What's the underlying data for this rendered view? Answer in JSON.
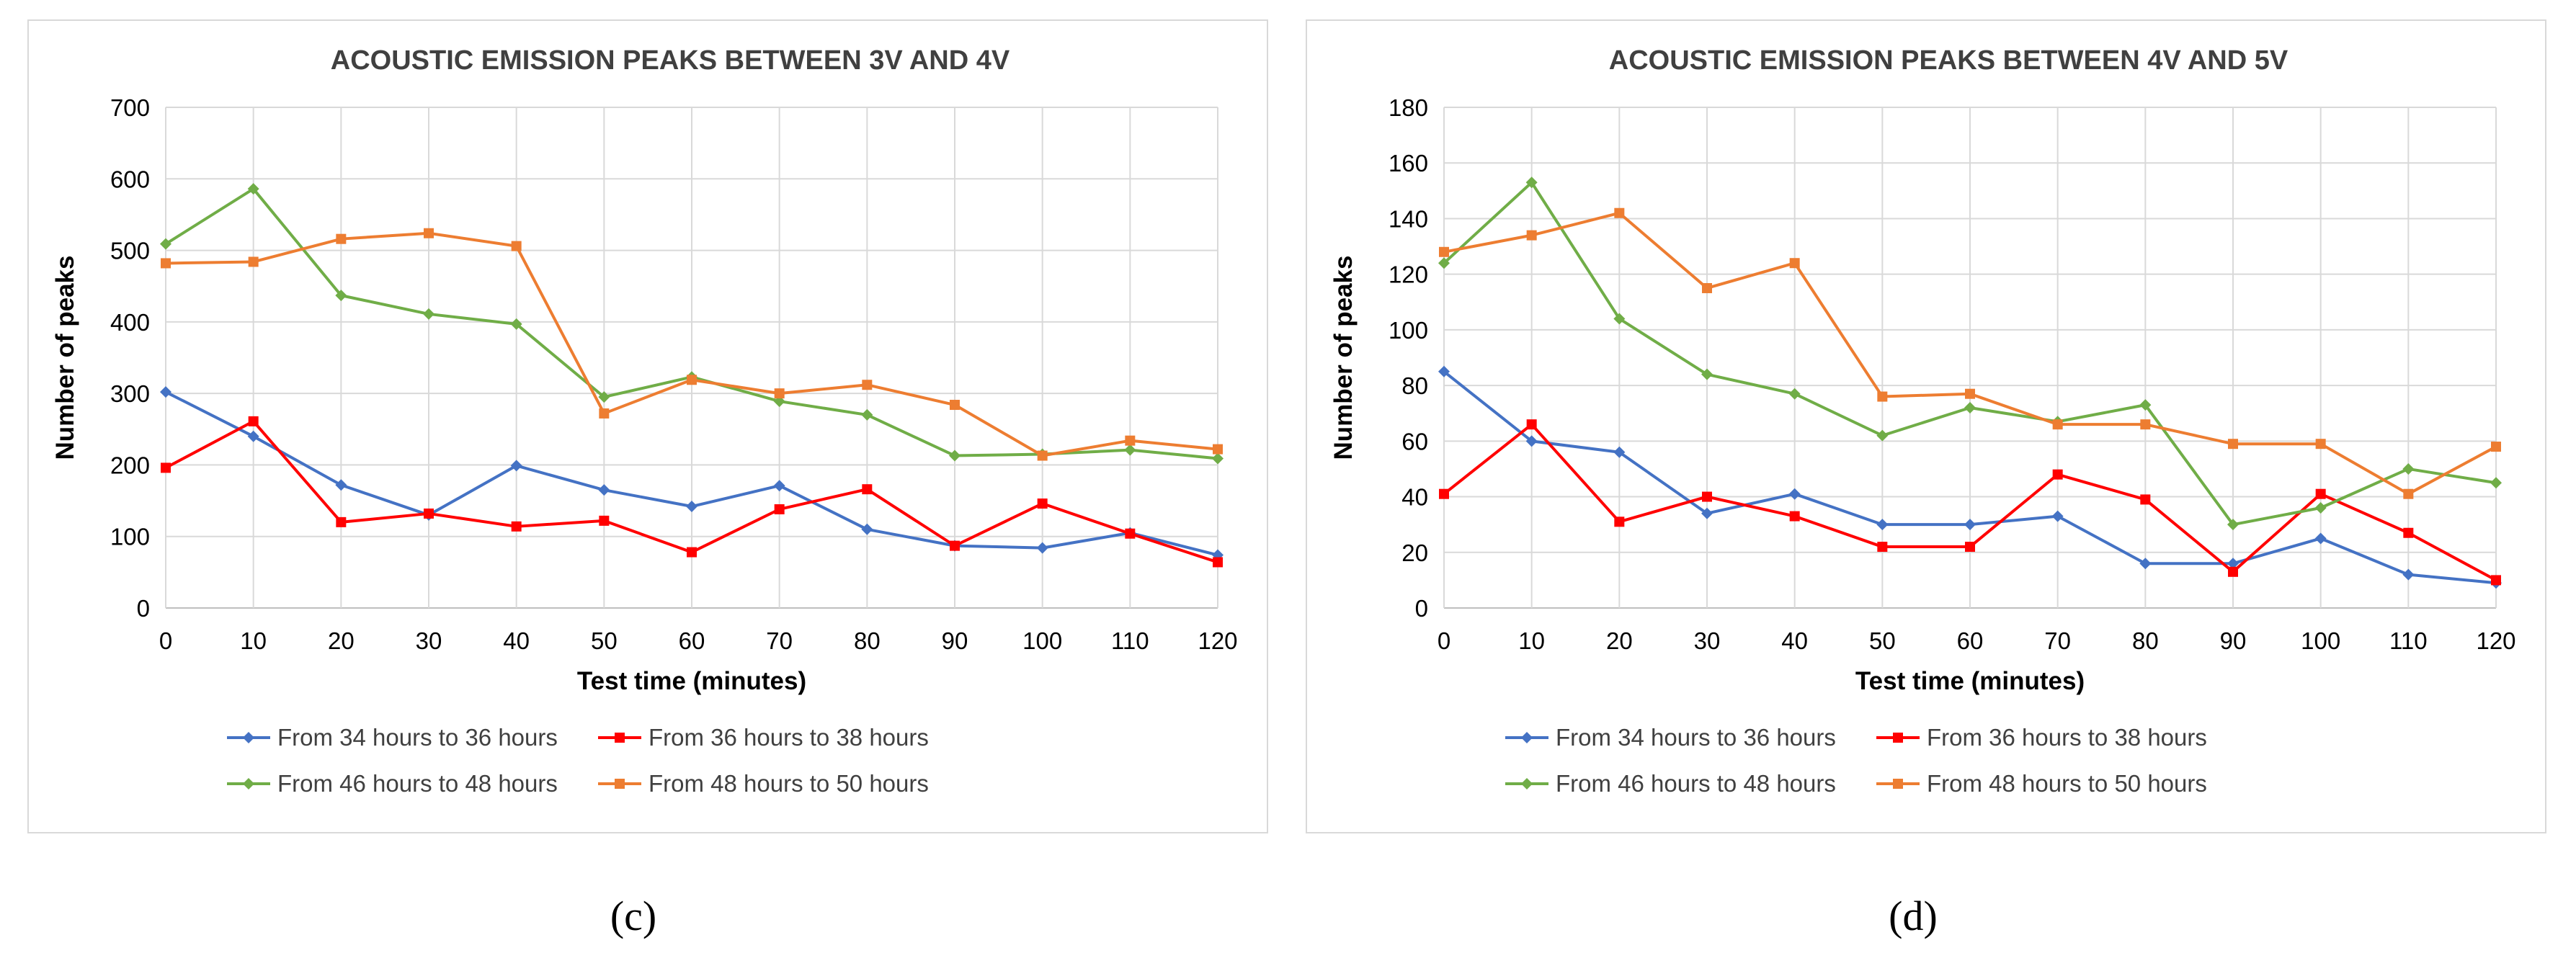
{
  "charts": [
    {
      "caption": "(c)",
      "chart_data": {
        "type": "line",
        "title": "ACOUSTIC EMISSION PEAKS BETWEEN 3V AND 4V",
        "xlabel": "Test time (minutes)",
        "ylabel": "Number of peaks",
        "x": [
          0,
          10,
          20,
          30,
          40,
          50,
          60,
          70,
          80,
          90,
          100,
          110,
          120
        ],
        "ylim": [
          0,
          700
        ],
        "yticks": [
          0,
          100,
          200,
          300,
          400,
          500,
          600,
          700
        ],
        "grid": true,
        "legend": "bottom",
        "series": [
          {
            "name": "From 34 hours to 36 hours",
            "color": "#4472C4",
            "marker": "diamond",
            "values": [
              302,
              240,
              172,
              130,
              199,
              165,
              142,
              171,
              110,
              87,
              84,
              105,
              74
            ]
          },
          {
            "name": "From 36 hours to 38 hours",
            "color": "#FF0000",
            "marker": "square",
            "values": [
              196,
              261,
              120,
              132,
              114,
              122,
              78,
              138,
              166,
              87,
              146,
              104,
              64
            ]
          },
          {
            "name": "From 46 hours to 48 hours",
            "color": "#70AD47",
            "marker": "diamond",
            "values": [
              509,
              586,
              437,
              411,
              397,
              295,
              323,
              289,
              270,
              213,
              215,
              221,
              209
            ]
          },
          {
            "name": "From 48 hours to 50 hours",
            "color": "#ED7D31",
            "marker": "square",
            "values": [
              482,
              484,
              516,
              524,
              506,
              272,
              319,
              300,
              312,
              284,
              213,
              234,
              222
            ]
          }
        ]
      }
    },
    {
      "caption": "(d)",
      "chart_data": {
        "type": "line",
        "title": "ACOUSTIC EMISSION PEAKS BETWEEN 4V AND 5V",
        "xlabel": "Test time (minutes)",
        "ylabel": "Number of peaks",
        "x": [
          0,
          10,
          20,
          30,
          40,
          50,
          60,
          70,
          80,
          90,
          100,
          110,
          120
        ],
        "ylim": [
          0,
          180
        ],
        "yticks": [
          0,
          20,
          40,
          60,
          80,
          100,
          120,
          140,
          160,
          180
        ],
        "grid": true,
        "legend": "bottom",
        "series": [
          {
            "name": "From 34 hours to 36 hours",
            "color": "#4472C4",
            "marker": "diamond",
            "values": [
              85,
              60,
              56,
              34,
              41,
              30,
              30,
              33,
              16,
              16,
              25,
              12,
              9
            ]
          },
          {
            "name": "From 36 hours to 38 hours",
            "color": "#FF0000",
            "marker": "square",
            "values": [
              41,
              66,
              31,
              40,
              33,
              22,
              22,
              48,
              39,
              13,
              41,
              27,
              10
            ]
          },
          {
            "name": "From 46 hours to 48 hours",
            "color": "#70AD47",
            "marker": "diamond",
            "values": [
              124,
              153,
              104,
              84,
              77,
              62,
              72,
              67,
              73,
              30,
              36,
              50,
              45
            ]
          },
          {
            "name": "From 48 hours to 50 hours",
            "color": "#ED7D31",
            "marker": "square",
            "values": [
              128,
              134,
              142,
              115,
              124,
              76,
              77,
              66,
              66,
              59,
              59,
              41,
              58
            ]
          }
        ]
      }
    }
  ]
}
